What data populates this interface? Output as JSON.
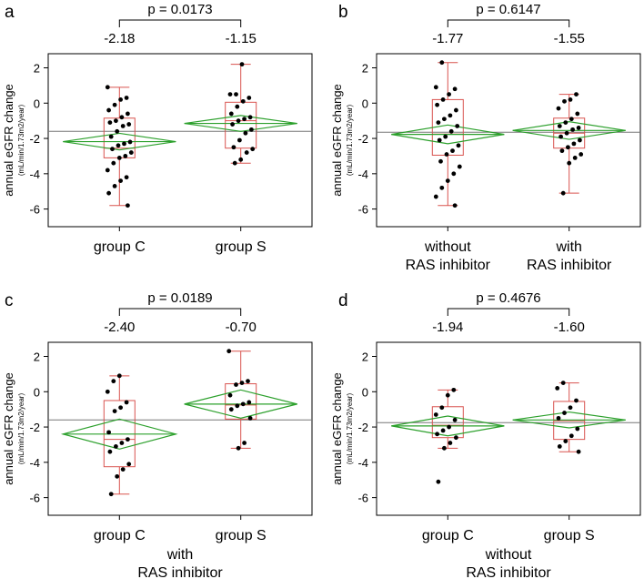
{
  "colors": {
    "box": "#d9534f",
    "diamond": "#2ca02c",
    "grand_mean": "#777777",
    "points": "#000000",
    "frame": "#000000"
  },
  "chart_data": [
    {
      "panel": "a",
      "type": "scatter",
      "p_value": "p = 0.0173",
      "ylabel": "annual eGFR change",
      "ylabel_units": "(mL/min/1.73m2/year)",
      "ylim": [
        -7,
        2.8
      ],
      "yticks": [
        2,
        0,
        -2,
        -4,
        -6
      ],
      "grand_mean": -1.6,
      "subtitle": [],
      "groups": [
        {
          "label_lines": [
            "group C"
          ],
          "mean": -2.18,
          "mean_label": "-2.18",
          "ci": [
            -2.65,
            -1.71
          ],
          "box": [
            -3.1,
            -2.55,
            -0.85
          ],
          "whiskers": [
            -5.8,
            0.9
          ],
          "points": [
            0.9,
            0.3,
            0.2,
            -0.1,
            -0.4,
            -0.6,
            -0.8,
            -1.0,
            -1.1,
            -1.2,
            -1.3,
            -1.6,
            -1.9,
            -2.2,
            -2.3,
            -2.4,
            -2.6,
            -2.8,
            -3.0,
            -3.1,
            -3.4,
            -3.8,
            -4.2,
            -4.4,
            -4.7,
            -5.1,
            -5.8
          ]
        },
        {
          "label_lines": [
            "group S"
          ],
          "mean": -1.15,
          "mean_label": "-1.15",
          "ci": [
            -1.6,
            -0.7
          ],
          "box": [
            -2.55,
            -1.0,
            0.05
          ],
          "whiskers": [
            -3.4,
            2.2
          ],
          "points": [
            2.2,
            0.5,
            0.5,
            0.3,
            0.1,
            -0.2,
            -0.6,
            -0.8,
            -0.9,
            -1.0,
            -1.2,
            -1.5,
            -1.7,
            -2.1,
            -2.5,
            -2.6,
            -2.8,
            -3.2,
            -3.4
          ]
        }
      ]
    },
    {
      "panel": "b",
      "type": "scatter",
      "p_value": "p = 0.6147",
      "ylabel": "annual eGFR change",
      "ylabel_units": "(mL/min/1.73m2/year)",
      "ylim": [
        -7,
        2.8
      ],
      "yticks": [
        2,
        0,
        -2,
        -4,
        -6
      ],
      "grand_mean": -1.65,
      "subtitle": [],
      "groups": [
        {
          "label_lines": [
            "without",
            "RAS inhibitor"
          ],
          "mean": -1.77,
          "mean_label": "-1.77",
          "ci": [
            -2.3,
            -1.24
          ],
          "box": [
            -2.95,
            -1.75,
            0.2
          ],
          "whiskers": [
            -5.8,
            2.3
          ],
          "points": [
            2.3,
            0.9,
            0.8,
            0.5,
            0.2,
            -0.1,
            -0.4,
            -0.7,
            -0.9,
            -1.1,
            -1.3,
            -1.6,
            -1.9,
            -2.1,
            -2.4,
            -2.7,
            -2.9,
            -3.3,
            -3.6,
            -4.0,
            -4.4,
            -4.8,
            -5.3,
            -5.8
          ]
        },
        {
          "label_lines": [
            "with",
            "RAS inhibitor"
          ],
          "mean": -1.55,
          "mean_label": "-1.55",
          "ci": [
            -2.05,
            -1.05
          ],
          "box": [
            -2.55,
            -1.7,
            -0.85
          ],
          "whiskers": [
            -5.1,
            0.5
          ],
          "points": [
            0.5,
            0.2,
            0.1,
            -0.3,
            -0.6,
            -0.9,
            -1.1,
            -1.3,
            -1.4,
            -1.5,
            -1.7,
            -1.9,
            -2.1,
            -2.3,
            -2.5,
            -2.7,
            -2.9,
            -3.1,
            -3.4,
            -5.1
          ]
        }
      ]
    },
    {
      "panel": "c",
      "type": "scatter",
      "p_value": "p = 0.0189",
      "ylabel": "annual eGFR change",
      "ylabel_units": "(mL/min/1.73m2/year)",
      "ylim": [
        -7,
        2.8
      ],
      "yticks": [
        2,
        0,
        -2,
        -4,
        -6
      ],
      "grand_mean": -1.6,
      "subtitle": [
        "with",
        "RAS inhibitor"
      ],
      "groups": [
        {
          "label_lines": [
            "group C"
          ],
          "mean": -2.4,
          "mean_label": "-2.40",
          "ci": [
            -3.25,
            -1.55
          ],
          "box": [
            -4.25,
            -2.7,
            -0.5
          ],
          "whiskers": [
            -5.8,
            0.9
          ],
          "points": [
            0.9,
            0.6,
            0.0,
            -0.6,
            -0.9,
            -1.1,
            -2.3,
            -2.7,
            -2.9,
            -3.1,
            -3.4,
            -4.1,
            -4.4,
            -4.8,
            -5.8
          ]
        },
        {
          "label_lines": [
            "group S"
          ],
          "mean": -0.7,
          "mean_label": "-0.70",
          "ci": [
            -1.5,
            0.1
          ],
          "box": [
            -1.55,
            -0.75,
            0.45
          ],
          "whiskers": [
            -3.2,
            2.3
          ],
          "points": [
            2.3,
            0.6,
            0.5,
            0.4,
            -0.2,
            -0.6,
            -0.7,
            -0.8,
            -1.0,
            -1.5,
            -2.9,
            -3.2
          ]
        }
      ]
    },
    {
      "panel": "d",
      "type": "scatter",
      "p_value": "p = 0.4676",
      "ylabel": "annual eGFR change",
      "ylabel_units": "(mL/min/1.73m2/year)",
      "ylim": [
        -7,
        2.8
      ],
      "yticks": [
        2,
        0,
        -2,
        -4,
        -6
      ],
      "grand_mean": -1.75,
      "subtitle": [
        "without",
        "RAS inhibitor"
      ],
      "groups": [
        {
          "label_lines": [
            "group C"
          ],
          "mean": -1.94,
          "mean_label": "-1.94",
          "ci": [
            -2.5,
            -1.38
          ],
          "box": [
            -2.6,
            -1.9,
            -0.85
          ],
          "whiskers": [
            -3.2,
            0.1
          ],
          "points": [
            0.1,
            -0.2,
            -0.9,
            -1.3,
            -1.6,
            -2.0,
            -2.2,
            -2.4,
            -2.6,
            -2.9,
            -3.2,
            -5.1
          ]
        },
        {
          "label_lines": [
            "group S"
          ],
          "mean": -1.6,
          "mean_label": "-1.60",
          "ci": [
            -2.05,
            -1.15
          ],
          "box": [
            -2.7,
            -1.65,
            -0.55
          ],
          "whiskers": [
            -3.4,
            0.5
          ],
          "points": [
            0.5,
            0.2,
            -0.5,
            -0.9,
            -1.2,
            -1.5,
            -2.1,
            -2.5,
            -2.8,
            -3.1,
            -3.4
          ]
        }
      ]
    }
  ]
}
